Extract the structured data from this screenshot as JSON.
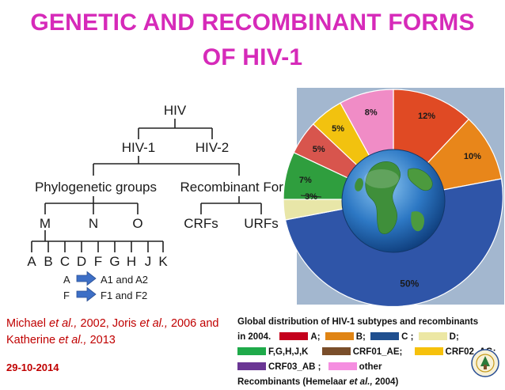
{
  "title": {
    "line1": "GENETIC AND RECOMBINANT FORMS",
    "line2": "OF HIV-1"
  },
  "tree": {
    "root": "HIV",
    "types": [
      "HIV-1",
      "HIV-2"
    ],
    "branches": [
      "Phylogenetic groups",
      "Recombinant Forms"
    ],
    "groups": [
      "M",
      "N",
      "O"
    ],
    "recombinant_types": [
      "CRFs",
      "URFs"
    ],
    "subtypes": [
      "A",
      "B",
      "C",
      "D",
      "F",
      "G",
      "H",
      "J",
      "K"
    ],
    "subsubtypes": [
      {
        "from": "A",
        "to": "A1 and A2"
      },
      {
        "from": "F",
        "to": "F1 and F2"
      }
    ],
    "arrow_color": "#3d6fc6"
  },
  "pie": {
    "labels": [
      "12%",
      "10%",
      "50%",
      "3%",
      "7%",
      "5%",
      "5%",
      "8%"
    ]
  },
  "chart_data": {
    "type": "pie",
    "title": "Global distribution of HIV-1 subtypes and recombinants in 2004.",
    "slices": [
      {
        "label": "12%",
        "value": 12,
        "color": "#e04a24"
      },
      {
        "label": "10%",
        "value": 10,
        "color": "#e8861a"
      },
      {
        "label": "50%",
        "value": 50,
        "color": "#2f55a8"
      },
      {
        "label": "3%",
        "value": 3,
        "color": "#e8e6a8"
      },
      {
        "label": "7%",
        "value": 7,
        "color": "#2f9e3e"
      },
      {
        "label": "5%",
        "value": 5,
        "color": "#d8554d"
      },
      {
        "label": "5%",
        "value": 5,
        "color": "#f2c20f"
      },
      {
        "label": "8%",
        "value": 8,
        "color": "#f08cc6"
      }
    ],
    "legend_placement": "bottom"
  },
  "citation": {
    "a1": "Michael",
    "a1_etal": "et al.,",
    "y1": "2002, Joris",
    "a2_etal": "et al.,",
    "y2": "2006 and",
    "a3": "Katherine",
    "a3_etal": "et al.,",
    "y3": "2013"
  },
  "date": "29-10-2014",
  "legend": {
    "heading": "Global distribution of HIV-1 subtypes and recombinants",
    "year": "in 2004.",
    "items": [
      {
        "label": "A;",
        "color": "#c4001c"
      },
      {
        "label": "B;",
        "color": "#e08414"
      },
      {
        "label": "C ;",
        "color": "#1f4f8f"
      },
      {
        "label": "D;",
        "color": "#ece7a4"
      },
      {
        "label": "F,G,H,J,K",
        "color": "#1faa4a"
      },
      {
        "label": "CRF01_AE;",
        "color": "#7a4e2a"
      },
      {
        "label": "CRF02_AG;",
        "color": "#f6c10c"
      },
      {
        "label": "CRF03_AB ;",
        "color": "#6a3694"
      },
      {
        "label": "other",
        "color": "#f58ee0"
      }
    ],
    "footer": "Recombinants (Hemelaar",
    "footer_etal": "et al.,",
    "footer_year": "2004)"
  }
}
